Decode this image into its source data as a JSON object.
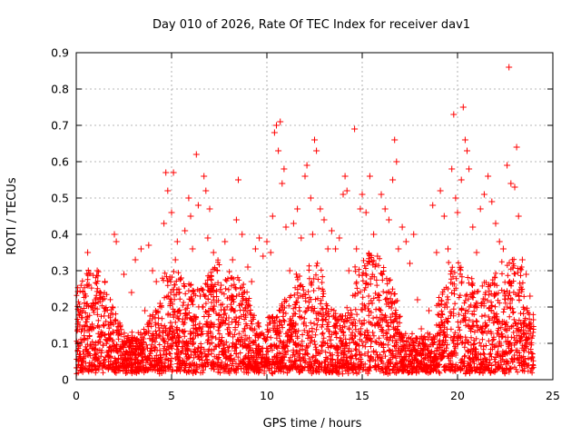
{
  "chart_data": {
    "type": "scatter",
    "title": "Day 010 of 2026, Rate Of TEC Index for receiver dav1",
    "xlabel": "GPS time / hours",
    "ylabel": "ROTI / TECUs",
    "xlim": [
      0,
      25
    ],
    "ylim": [
      0,
      0.9
    ],
    "xticks": [
      0,
      5,
      10,
      15,
      20,
      25
    ],
    "yticks": [
      0,
      0.1,
      0.2,
      0.3,
      0.4,
      0.5,
      0.6,
      0.7,
      0.8,
      0.9
    ],
    "grid": true,
    "marker": "plus",
    "color": "#ff0000",
    "series": [
      {
        "points": [
          [
            0.2,
            0.06
          ],
          [
            0.3,
            0.14
          ],
          [
            0.5,
            0.23
          ],
          [
            0.6,
            0.35
          ],
          [
            0.8,
            0.04
          ],
          [
            1.0,
            0.22
          ],
          [
            1.1,
            0.3
          ],
          [
            1.3,
            0.12
          ],
          [
            1.5,
            0.27
          ],
          [
            1.7,
            0.08
          ],
          [
            1.9,
            0.2
          ],
          [
            2.0,
            0.4
          ],
          [
            2.1,
            0.38
          ],
          [
            2.3,
            0.15
          ],
          [
            2.5,
            0.29
          ],
          [
            2.7,
            0.06
          ],
          [
            2.9,
            0.24
          ],
          [
            3.1,
            0.33
          ],
          [
            3.2,
            0.11
          ],
          [
            3.4,
            0.36
          ],
          [
            3.6,
            0.19
          ],
          [
            3.8,
            0.37
          ],
          [
            4.0,
            0.3
          ],
          [
            4.1,
            0.05
          ],
          [
            4.2,
            0.27
          ],
          [
            4.4,
            0.21
          ],
          [
            4.6,
            0.43
          ],
          [
            4.7,
            0.57
          ],
          [
            4.8,
            0.52
          ],
          [
            4.9,
            0.14
          ],
          [
            5.0,
            0.46
          ],
          [
            5.1,
            0.57
          ],
          [
            5.2,
            0.33
          ],
          [
            5.3,
            0.38
          ],
          [
            5.5,
            0.28
          ],
          [
            5.7,
            0.41
          ],
          [
            5.8,
            0.1
          ],
          [
            5.9,
            0.5
          ],
          [
            6.0,
            0.45
          ],
          [
            6.1,
            0.36
          ],
          [
            6.3,
            0.62
          ],
          [
            6.4,
            0.48
          ],
          [
            6.5,
            0.23
          ],
          [
            6.7,
            0.56
          ],
          [
            6.8,
            0.52
          ],
          [
            6.9,
            0.39
          ],
          [
            7.0,
            0.47
          ],
          [
            7.1,
            0.08
          ],
          [
            7.2,
            0.35
          ],
          [
            7.4,
            0.3
          ],
          [
            7.6,
            0.26
          ],
          [
            7.8,
            0.38
          ],
          [
            8.0,
            0.17
          ],
          [
            8.2,
            0.33
          ],
          [
            8.4,
            0.44
          ],
          [
            8.5,
            0.55
          ],
          [
            8.7,
            0.4
          ],
          [
            8.9,
            0.22
          ],
          [
            9.0,
            0.31
          ],
          [
            9.2,
            0.27
          ],
          [
            9.4,
            0.36
          ],
          [
            9.6,
            0.39
          ],
          [
            9.8,
            0.34
          ],
          [
            10.0,
            0.38
          ],
          [
            10.2,
            0.35
          ],
          [
            10.3,
            0.45
          ],
          [
            10.4,
            0.68
          ],
          [
            10.5,
            0.7
          ],
          [
            10.6,
            0.63
          ],
          [
            10.7,
            0.71
          ],
          [
            10.8,
            0.54
          ],
          [
            10.9,
            0.58
          ],
          [
            11.0,
            0.42
          ],
          [
            11.2,
            0.3
          ],
          [
            11.4,
            0.43
          ],
          [
            11.6,
            0.47
          ],
          [
            11.8,
            0.39
          ],
          [
            12.0,
            0.56
          ],
          [
            12.1,
            0.59
          ],
          [
            12.3,
            0.5
          ],
          [
            12.4,
            0.4
          ],
          [
            12.5,
            0.66
          ],
          [
            12.6,
            0.63
          ],
          [
            12.8,
            0.47
          ],
          [
            13.0,
            0.44
          ],
          [
            13.2,
            0.36
          ],
          [
            13.4,
            0.41
          ],
          [
            13.6,
            0.36
          ],
          [
            13.8,
            0.39
          ],
          [
            14.0,
            0.51
          ],
          [
            14.1,
            0.56
          ],
          [
            14.2,
            0.52
          ],
          [
            14.3,
            0.3
          ],
          [
            14.5,
            0.15
          ],
          [
            14.6,
            0.69
          ],
          [
            14.7,
            0.36
          ],
          [
            14.9,
            0.47
          ],
          [
            15.0,
            0.51
          ],
          [
            15.2,
            0.46
          ],
          [
            15.4,
            0.56
          ],
          [
            15.6,
            0.4
          ],
          [
            15.8,
            0.34
          ],
          [
            16.0,
            0.51
          ],
          [
            16.2,
            0.47
          ],
          [
            16.4,
            0.44
          ],
          [
            16.6,
            0.55
          ],
          [
            16.7,
            0.66
          ],
          [
            16.8,
            0.6
          ],
          [
            16.9,
            0.36
          ],
          [
            17.1,
            0.42
          ],
          [
            17.3,
            0.38
          ],
          [
            17.5,
            0.32
          ],
          [
            17.7,
            0.4
          ],
          [
            17.9,
            0.22
          ],
          [
            18.1,
            0.14
          ],
          [
            18.3,
            0.11
          ],
          [
            18.5,
            0.19
          ],
          [
            18.7,
            0.48
          ],
          [
            18.9,
            0.35
          ],
          [
            19.1,
            0.52
          ],
          [
            19.3,
            0.45
          ],
          [
            19.5,
            0.36
          ],
          [
            19.7,
            0.58
          ],
          [
            19.8,
            0.73
          ],
          [
            19.9,
            0.5
          ],
          [
            20.0,
            0.46
          ],
          [
            20.2,
            0.55
          ],
          [
            20.3,
            0.75
          ],
          [
            20.4,
            0.66
          ],
          [
            20.5,
            0.63
          ],
          [
            20.6,
            0.58
          ],
          [
            20.8,
            0.42
          ],
          [
            21.0,
            0.35
          ],
          [
            21.2,
            0.47
          ],
          [
            21.4,
            0.51
          ],
          [
            21.6,
            0.56
          ],
          [
            21.8,
            0.49
          ],
          [
            22.0,
            0.43
          ],
          [
            22.2,
            0.38
          ],
          [
            22.4,
            0.36
          ],
          [
            22.6,
            0.59
          ],
          [
            22.7,
            0.86
          ],
          [
            22.8,
            0.54
          ],
          [
            23.0,
            0.53
          ],
          [
            23.1,
            0.64
          ],
          [
            23.2,
            0.45
          ],
          [
            23.4,
            0.33
          ],
          [
            23.6,
            0.29
          ],
          [
            23.8,
            0.23
          ],
          [
            23.9,
            0.06
          ]
        ]
      }
    ],
    "density_note": ""
  }
}
